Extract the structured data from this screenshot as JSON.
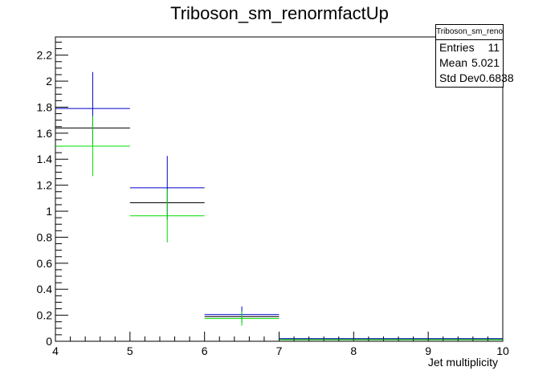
{
  "chart_data": {
    "type": "histogram",
    "title": "Triboson_sm_renormfactUp",
    "xlabel": "Jet multiplicity",
    "ylabel": "",
    "xlim": [
      4,
      10
    ],
    "ylim": [
      0,
      2.34
    ],
    "x_ticks": [
      "4",
      "5",
      "6",
      "7",
      "8",
      "9",
      "10"
    ],
    "y_ticks": [
      "0",
      "0.2",
      "0.4",
      "0.6",
      "0.8",
      "1",
      "1.2",
      "1.4",
      "1.6",
      "1.8",
      "2",
      "2.2"
    ],
    "bins": [
      [
        4,
        5
      ],
      [
        5,
        6
      ],
      [
        6,
        7
      ],
      [
        7,
        8
      ],
      [
        8,
        9
      ],
      [
        9,
        10
      ]
    ],
    "series": [
      {
        "color": "#0000cc",
        "values": [
          1.79,
          1.18,
          0.205,
          0.02,
          0.02,
          0.02
        ],
        "errors": [
          0.28,
          0.245,
          0.062,
          0,
          0,
          0
        ]
      },
      {
        "color": "#000000",
        "values": [
          1.64,
          1.065,
          0.19,
          0.015,
          0.015,
          0.015
        ],
        "errors": [
          0,
          0,
          0,
          0,
          0,
          0
        ]
      },
      {
        "color": "#00dd00",
        "values": [
          1.5,
          0.965,
          0.175,
          0.012,
          0.012,
          0.012
        ],
        "errors": [
          0.23,
          0.205,
          0.055,
          0,
          0,
          0
        ]
      }
    ],
    "stats": {
      "title": "Triboson_sm_renormfactUp",
      "rows": [
        {
          "label": "Entries",
          "value": "11"
        },
        {
          "label": "Mean",
          "value": "5.021"
        },
        {
          "label": "Std Dev",
          "value": "0.6838"
        }
      ]
    }
  }
}
